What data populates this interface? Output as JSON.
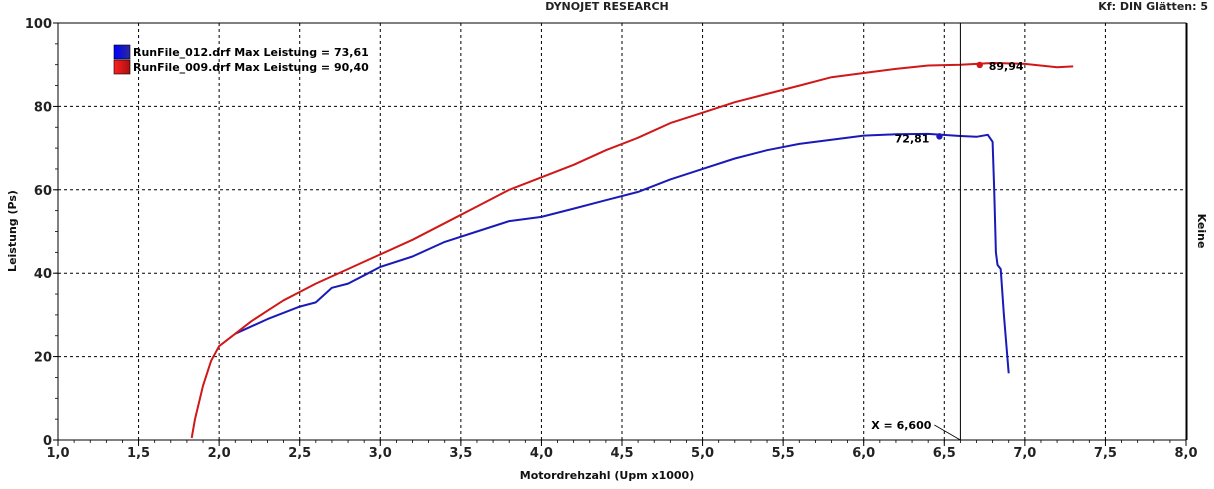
{
  "header": {
    "title": "DYNOJET RESEARCH",
    "info": "Kf: DIN  Glätten: 5"
  },
  "chart_data": {
    "type": "line",
    "xlabel": "Motordrehzahl (Upm x1000)",
    "ylabel": "Leistung (Ps)",
    "right_label": "Keine",
    "xlim": [
      1.0,
      8.0
    ],
    "ylim": [
      0,
      100
    ],
    "xticks": [
      "1,0",
      "1,5",
      "2,0",
      "2,5",
      "3,0",
      "3,5",
      "4,0",
      "4,5",
      "5,0",
      "5,5",
      "6,0",
      "6,5",
      "7,0",
      "7,5",
      "8,0"
    ],
    "yticks": [
      "0",
      "20",
      "40",
      "60",
      "80",
      "100"
    ],
    "grid": true,
    "legend_position": "top-left",
    "cursor": {
      "x": 6.6,
      "label": "X = 6,600"
    },
    "series": [
      {
        "name": "RunFile_012.drf Max Leistung = 73,61",
        "color": "#1a1ab8",
        "marker_label": "72,81",
        "marker": {
          "x": 6.47,
          "y": 72.81
        },
        "x": [
          2.1,
          2.3,
          2.5,
          2.6,
          2.7,
          2.8,
          2.9,
          3.0,
          3.2,
          3.4,
          3.6,
          3.8,
          4.0,
          4.2,
          4.4,
          4.6,
          4.8,
          5.0,
          5.2,
          5.4,
          5.6,
          5.8,
          6.0,
          6.2,
          6.4,
          6.6,
          6.7,
          6.77,
          6.8,
          6.81,
          6.82,
          6.83,
          6.85,
          6.87,
          6.9
        ],
        "y": [
          25.5,
          29.0,
          32.0,
          33.0,
          36.5,
          37.5,
          39.5,
          41.5,
          44.0,
          47.5,
          50.0,
          52.5,
          53.5,
          55.5,
          57.5,
          59.5,
          62.5,
          65.0,
          67.5,
          69.5,
          71.0,
          72.0,
          73.0,
          73.3,
          73.4,
          72.9,
          72.7,
          73.2,
          71.5,
          60.0,
          45.0,
          42.0,
          41.0,
          30.0,
          16.0
        ]
      },
      {
        "name": "RunFile_009.drf Max Leistung = 90,40",
        "color": "#d01818",
        "marker_label": "89,94",
        "marker": {
          "x": 6.72,
          "y": 89.94
        },
        "x": [
          1.83,
          1.85,
          1.9,
          1.95,
          2.0,
          2.1,
          2.2,
          2.3,
          2.4,
          2.5,
          2.6,
          2.8,
          3.0,
          3.2,
          3.4,
          3.6,
          3.8,
          4.0,
          4.2,
          4.4,
          4.6,
          4.8,
          5.0,
          5.2,
          5.4,
          5.6,
          5.8,
          6.0,
          6.2,
          6.4,
          6.6,
          6.8,
          7.0,
          7.2,
          7.3
        ],
        "y": [
          0.5,
          5.0,
          13.0,
          19.0,
          22.5,
          25.5,
          28.5,
          31.0,
          33.5,
          35.5,
          37.5,
          41.0,
          44.5,
          48.0,
          52.0,
          56.0,
          60.0,
          63.0,
          66.0,
          69.5,
          72.5,
          76.0,
          78.5,
          81.0,
          83.0,
          85.0,
          87.0,
          88.0,
          89.0,
          89.8,
          90.0,
          90.4,
          90.2,
          89.4,
          89.6
        ]
      }
    ]
  }
}
